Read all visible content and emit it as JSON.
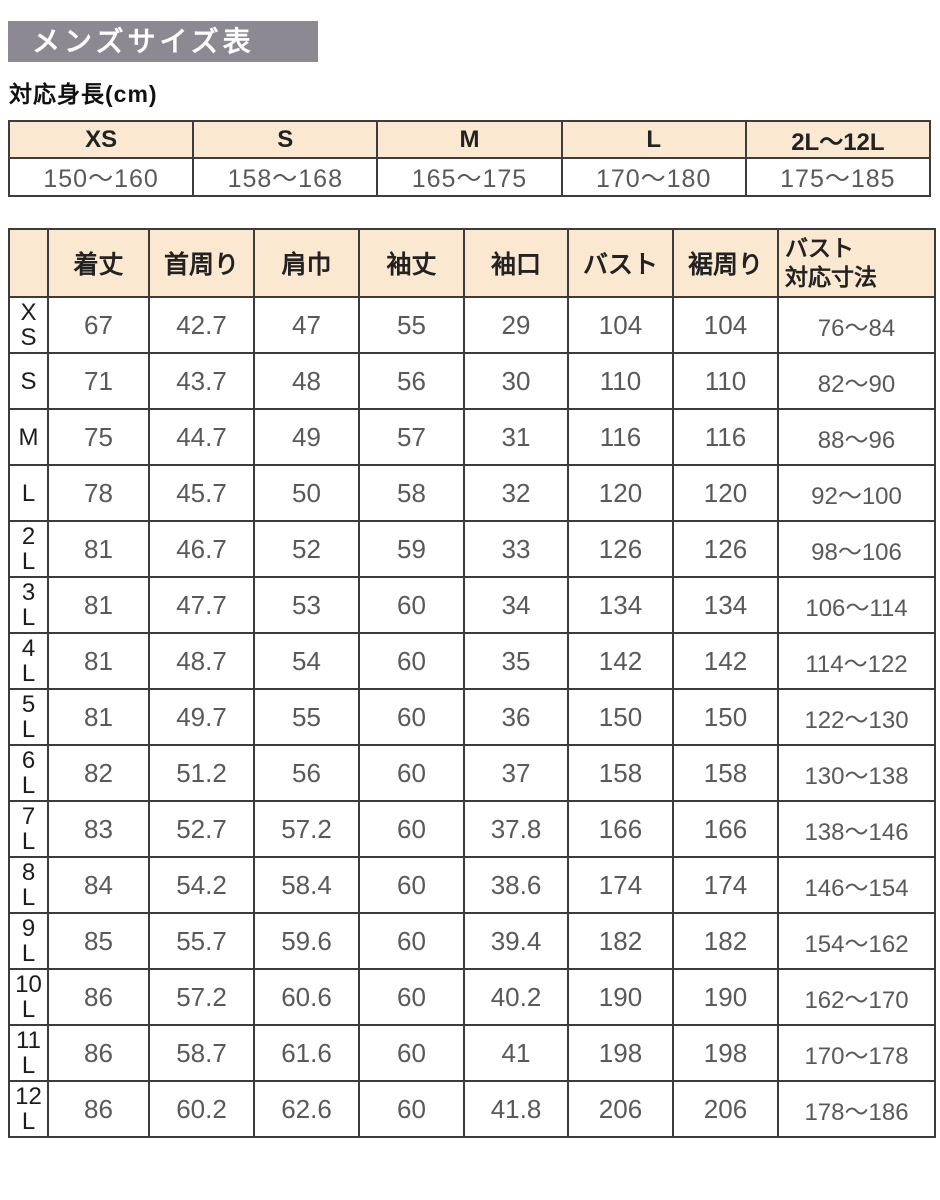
{
  "title_banner": "メンズサイズ表",
  "height_section": {
    "label": "対応身長(cm)",
    "columns": [
      "XS",
      "S",
      "M",
      "L",
      "2L～12L"
    ],
    "values": [
      "150～160",
      "158～168",
      "165～175",
      "170～180",
      "175～185"
    ]
  },
  "size_table": {
    "columns": [
      "着丈",
      "首周り",
      "肩巾",
      "袖丈",
      "袖口",
      "バスト",
      "裾周り"
    ],
    "bust_range_header": {
      "line1": "バスト",
      "line2": "対応寸法"
    },
    "rows": [
      {
        "size": "XS",
        "values": [
          "67",
          "42.7",
          "47",
          "55",
          "29",
          "104",
          "104",
          "76～84"
        ]
      },
      {
        "size": "S",
        "values": [
          "71",
          "43.7",
          "48",
          "56",
          "30",
          "110",
          "110",
          "82～90"
        ]
      },
      {
        "size": "M",
        "values": [
          "75",
          "44.7",
          "49",
          "57",
          "31",
          "116",
          "116",
          "88～96"
        ]
      },
      {
        "size": "L",
        "values": [
          "78",
          "45.7",
          "50",
          "58",
          "32",
          "120",
          "120",
          "92～100"
        ]
      },
      {
        "size": "2L",
        "values": [
          "81",
          "46.7",
          "52",
          "59",
          "33",
          "126",
          "126",
          "98～106"
        ]
      },
      {
        "size": "3L",
        "values": [
          "81",
          "47.7",
          "53",
          "60",
          "34",
          "134",
          "134",
          "106～114"
        ]
      },
      {
        "size": "4L",
        "values": [
          "81",
          "48.7",
          "54",
          "60",
          "35",
          "142",
          "142",
          "114～122"
        ]
      },
      {
        "size": "5L",
        "values": [
          "81",
          "49.7",
          "55",
          "60",
          "36",
          "150",
          "150",
          "122～130"
        ]
      },
      {
        "size": "6L",
        "values": [
          "82",
          "51.2",
          "56",
          "60",
          "37",
          "158",
          "158",
          "130～138"
        ]
      },
      {
        "size": "7L",
        "values": [
          "83",
          "52.7",
          "57.2",
          "60",
          "37.8",
          "166",
          "166",
          "138～146"
        ]
      },
      {
        "size": "8L",
        "values": [
          "84",
          "54.2",
          "58.4",
          "60",
          "38.6",
          "174",
          "174",
          "146～154"
        ]
      },
      {
        "size": "9L",
        "values": [
          "85",
          "55.7",
          "59.6",
          "60",
          "39.4",
          "182",
          "182",
          "154～162"
        ]
      },
      {
        "size": "10L",
        "values": [
          "86",
          "57.2",
          "60.6",
          "60",
          "40.2",
          "190",
          "190",
          "162～170"
        ]
      },
      {
        "size": "11L",
        "values": [
          "86",
          "58.7",
          "61.6",
          "60",
          "41",
          "198",
          "198",
          "170～178"
        ]
      },
      {
        "size": "12L",
        "values": [
          "86",
          "60.2",
          "62.6",
          "60",
          "41.8",
          "206",
          "206",
          "178～186"
        ]
      }
    ]
  },
  "colors": {
    "banner_bg": "#8d8992",
    "header_bg": "#fae8d1",
    "border": "#3c3c3c",
    "value_text": "#595959",
    "label_text": "#1c1c1c"
  }
}
